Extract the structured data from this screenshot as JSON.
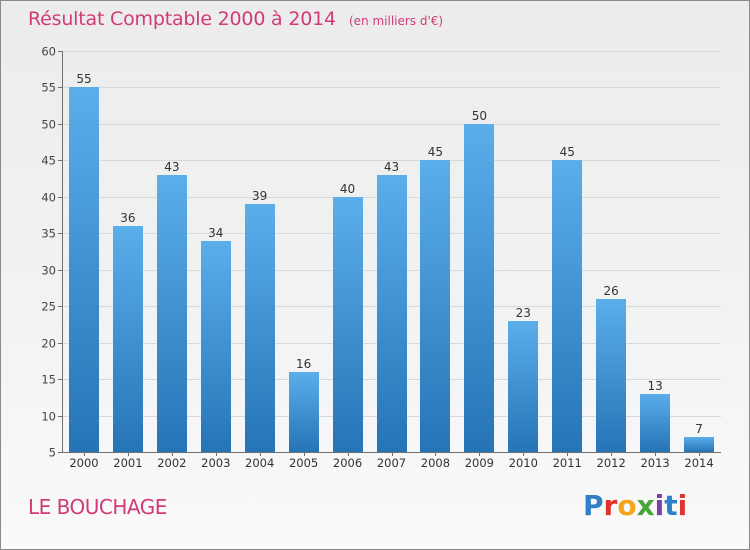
{
  "header": {
    "title": "Résultat Comptable 2000 à 2014",
    "unit": "(en milliers d'€)"
  },
  "footer": {
    "commune": "LE BOUCHAGE",
    "logo_letters": [
      "P",
      "r",
      "o",
      "x",
      "i",
      "t",
      "i"
    ]
  },
  "colors": {
    "accent": "#d23a78",
    "bar_top": "#5aaeea",
    "bar_bottom": "#2674b8"
  },
  "chart_data": {
    "type": "bar",
    "title": "Résultat Comptable 2000 à 2014",
    "subtitle": "(en milliers d'€)",
    "xlabel": "",
    "ylabel": "",
    "categories": [
      "2000",
      "2001",
      "2002",
      "2003",
      "2004",
      "2005",
      "2006",
      "2007",
      "2008",
      "2009",
      "2010",
      "2011",
      "2012",
      "2013",
      "2014"
    ],
    "values": [
      55,
      36,
      43,
      34,
      39,
      16,
      40,
      43,
      45,
      50,
      23,
      45,
      26,
      13,
      7
    ],
    "ylim": [
      5,
      60
    ],
    "yticks": [
      5,
      10,
      15,
      20,
      25,
      30,
      35,
      40,
      45,
      50,
      55,
      60
    ],
    "grid": true,
    "legend": "none"
  }
}
